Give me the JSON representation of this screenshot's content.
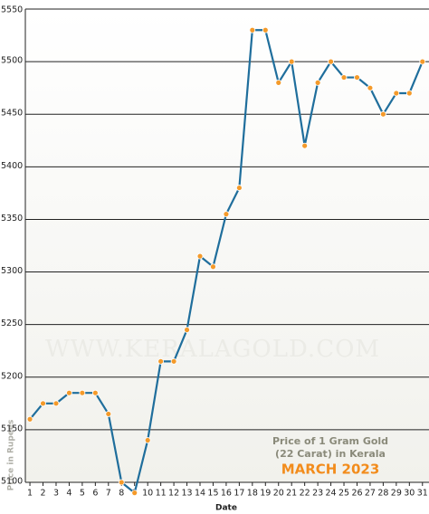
{
  "chart_data": {
    "type": "line",
    "x_label": "Date",
    "y_label": "Price in Rupees",
    "annotation": [
      "Price of 1 Gram Gold",
      "(22 Carat) in Kerala"
    ],
    "annotation_highlight": "MARCH 2023",
    "watermark": "WWW.KERALAGOLD.COM",
    "x": [
      1,
      2,
      3,
      4,
      5,
      6,
      7,
      8,
      9,
      10,
      11,
      12,
      13,
      14,
      15,
      16,
      17,
      18,
      19,
      20,
      21,
      22,
      23,
      24,
      25,
      26,
      27,
      28,
      29,
      30,
      31
    ],
    "xlim": [
      0.65,
      31.5
    ],
    "series": [
      {
        "name": "Price",
        "color": "#1f6e9c",
        "marker_color": "#f49a2a",
        "values": [
          5160,
          5175,
          5175,
          5185,
          5185,
          5185,
          5165,
          5100,
          5090,
          5140,
          5215,
          5215,
          5245,
          5315,
          5305,
          5355,
          5380,
          5530,
          5530,
          5480,
          5500,
          5420,
          5480,
          5500,
          5485,
          5485,
          5475,
          5450,
          5470,
          5470,
          5500
        ]
      }
    ],
    "ylim": [
      5100,
      5550
    ],
    "yticks": [
      5100,
      5150,
      5200,
      5250,
      5300,
      5350,
      5400,
      5450,
      5500,
      5550
    ],
    "grid": true
  }
}
